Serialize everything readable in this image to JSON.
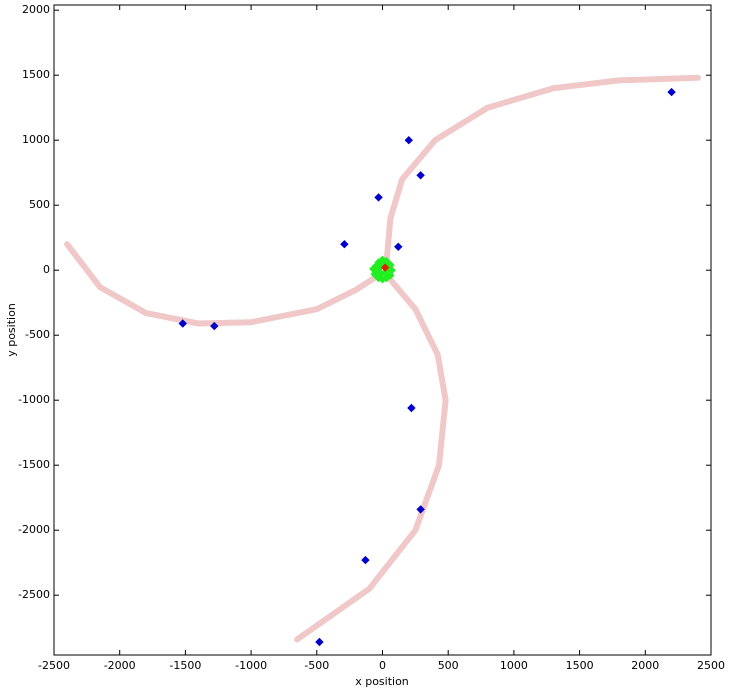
{
  "chart_data": {
    "type": "scatter",
    "x_label": "x position",
    "y_label": "y position",
    "xlim": [
      -2500,
      2500
    ],
    "ylim": [
      -2960,
      2040
    ],
    "xticks": [
      -2500,
      -2000,
      -1500,
      -1000,
      -500,
      0,
      500,
      1000,
      1500,
      2000,
      2500
    ],
    "yticks": [
      -2500,
      -2000,
      -1500,
      -1000,
      -500,
      0,
      500,
      1000,
      1500,
      2000
    ],
    "grid": false,
    "series": [
      {
        "mode": "line",
        "color": "#f0c8c8",
        "x": [
          30,
          60,
          150,
          400,
          800,
          1300,
          1800,
          2400
        ],
        "values": [
          50,
          400,
          700,
          1000,
          1250,
          1400,
          1460,
          1480
        ]
      },
      {
        "mode": "line",
        "color": "#f0c8c8",
        "x": [
          0,
          -200,
          -500,
          -1000,
          -1400,
          -1800,
          -2150,
          -2400
        ],
        "values": [
          -20,
          -150,
          -300,
          -400,
          -410,
          -330,
          -130,
          200
        ]
      },
      {
        "mode": "line",
        "color": "#f0c8c8",
        "x": [
          50,
          250,
          420,
          480,
          430,
          250,
          -100,
          -650
        ],
        "values": [
          -60,
          -300,
          -650,
          -1000,
          -1500,
          -2000,
          -2450,
          -2840
        ]
      },
      {
        "mode": "marker",
        "color": "#22ee22",
        "x": [
          -50,
          -30,
          0,
          30,
          60,
          70,
          60,
          30,
          0,
          -30,
          -60,
          -70,
          -20,
          20,
          40,
          -10,
          10,
          -40
        ],
        "values": [
          30,
          60,
          80,
          70,
          40,
          0,
          -40,
          -60,
          -70,
          -60,
          -30,
          10,
          20,
          -20,
          10,
          -30,
          40,
          -10
        ]
      },
      {
        "mode": "marker",
        "color": "#0000cc",
        "x": [
          200,
          290,
          -30,
          -290,
          120,
          2200,
          -1520,
          -1280,
          220,
          290,
          -130,
          -480
        ],
        "values": [
          1000,
          730,
          560,
          200,
          180,
          1370,
          -410,
          -430,
          -1060,
          -1840,
          -2230,
          -2860
        ]
      },
      {
        "mode": "marker",
        "color": "#dd2200",
        "x": [
          20
        ],
        "values": [
          20
        ]
      }
    ]
  }
}
